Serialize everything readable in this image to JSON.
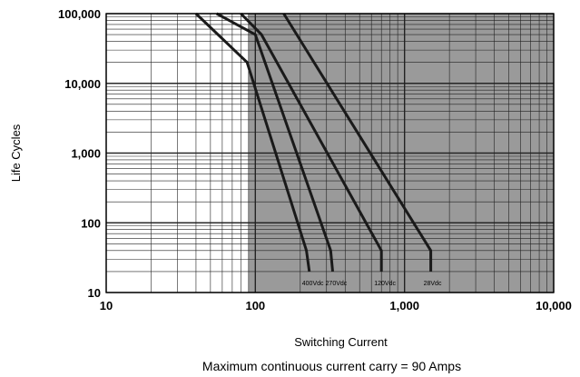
{
  "chart_data": {
    "type": "line",
    "x_scale": "log",
    "y_scale": "log",
    "xlim": [
      10,
      10000
    ],
    "ylim": [
      10,
      100000
    ],
    "xlabel": "Switching Current",
    "ylabel": "Life Cycles",
    "grid": true,
    "shaded_region_x_from": 90,
    "x_tick_labels": [
      "10",
      "100",
      "1,000",
      "10,000"
    ],
    "y_tick_labels": [
      "10",
      "100",
      "1,000",
      "10,000",
      "100,000"
    ],
    "annotation": "Maximum continuous current carry = 90 Amps",
    "line_color": "#1a1a1a",
    "shade_color": "#9a9a9a",
    "series": [
      {
        "name": "400Vdc",
        "points": [
          [
            40,
            100000
          ],
          [
            88,
            20000
          ],
          [
            220,
            40
          ],
          [
            230,
            20
          ]
        ]
      },
      {
        "name": "270Vdc",
        "points": [
          [
            55,
            100000
          ],
          [
            100,
            50000
          ],
          [
            320,
            40
          ],
          [
            330,
            20
          ]
        ]
      },
      {
        "name": "120Vdc",
        "points": [
          [
            80,
            100000
          ],
          [
            110,
            50000
          ],
          [
            700,
            40
          ],
          [
            700,
            20
          ]
        ]
      },
      {
        "name": "28Vdc",
        "points": [
          [
            155,
            100000
          ],
          [
            1500,
            40
          ],
          [
            1500,
            20
          ]
        ]
      }
    ]
  }
}
